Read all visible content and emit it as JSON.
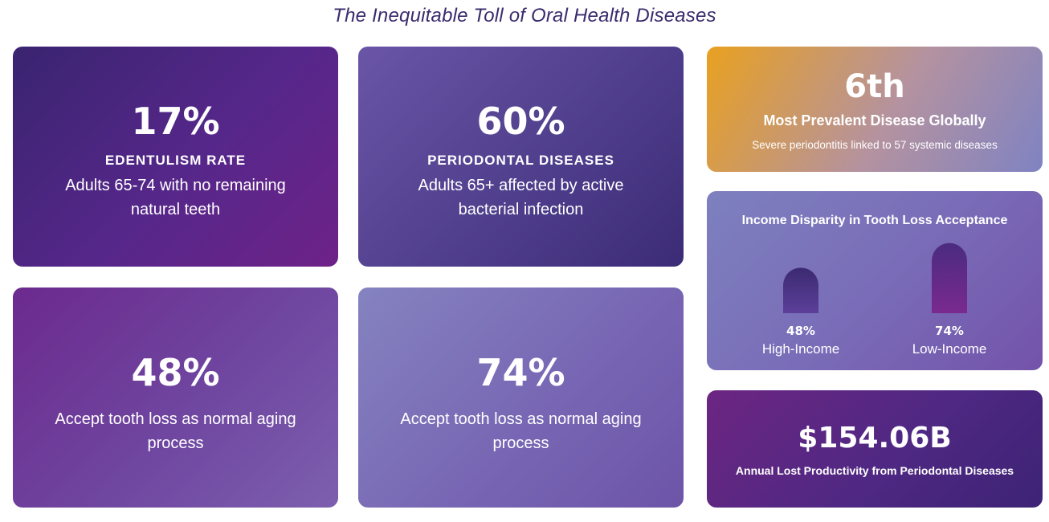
{
  "title": "The Inequitable Toll of Oral Health Diseases",
  "cards": {
    "edentulism": {
      "value": "17%",
      "label": "EDENTULISM RATE",
      "description": "Adults 65-74 with no remaining natural teeth"
    },
    "periodontal": {
      "value": "60%",
      "label": "PERIODONTAL DISEASES",
      "description": "Adults 65+ affected by active bacterial infection"
    },
    "accept_high": {
      "value": "48%",
      "description": "Accept tooth loss as normal aging process"
    },
    "accept_low": {
      "value": "74%",
      "description": "Accept tooth loss as normal aging process"
    },
    "prevalence": {
      "value": "6th",
      "headline": "Most Prevalent Disease Globally",
      "detail": "Severe periodontitis linked to 57 systemic diseases"
    },
    "productivity": {
      "value": "$154.06B",
      "detail": "Annual Lost Productivity from Periodontal Diseases"
    }
  },
  "chart_data": {
    "type": "bar",
    "title": "Income Disparity in Tooth Loss Acceptance",
    "categories": [
      "High-Income",
      "Low-Income"
    ],
    "values": [
      48,
      74
    ],
    "value_labels": [
      "48%",
      "74%"
    ],
    "ylim": [
      0,
      100
    ],
    "unit": "%"
  },
  "colors": {
    "title": "#3a2c6e",
    "bar_high_top": "#3b2a70",
    "bar_high_bottom": "#5c3f9a",
    "bar_low_top": "#4a2b80",
    "bar_low_bottom": "#7a2a8e"
  }
}
